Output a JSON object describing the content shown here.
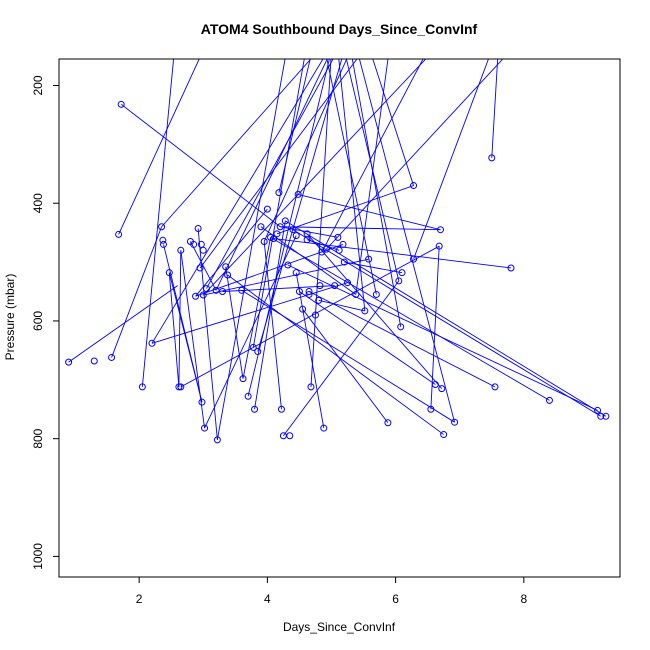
{
  "chart_data": {
    "type": "scatter",
    "title": "ATOM4 Southbound Days_Since_ConvInf",
    "xlabel": "Days_Since_ConvInf",
    "ylabel": "Pressure (mbar)",
    "xlim": [
      0.75,
      9.5
    ],
    "ylim": [
      1035,
      155
    ],
    "y_reversed": true,
    "x_ticks": [
      2,
      4,
      6,
      8
    ],
    "y_ticks": [
      200,
      400,
      600,
      800,
      1000
    ],
    "series_color": "#0000ff",
    "grid": false,
    "legend": "none",
    "series": [
      {
        "values": [
          [
            0.9,
            670
          ],
          [
            1.3,
            668
          ],
          [
            1.57,
            662
          ],
          [
            1.72,
            232
          ],
          [
            1.68,
            453
          ],
          [
            2.05,
            712
          ],
          [
            2.2,
            638
          ],
          [
            2.35,
            440
          ],
          [
            2.37,
            463
          ],
          [
            2.38,
            470
          ],
          [
            2.47,
            518
          ],
          [
            2.62,
            712
          ],
          [
            2.65,
            712
          ],
          [
            2.65,
            480
          ],
          [
            2.8,
            465
          ],
          [
            2.85,
            470
          ],
          [
            2.88,
            558
          ],
          [
            2.92,
            443
          ],
          [
            2.95,
            510
          ],
          [
            2.97,
            470
          ],
          [
            2.98,
            738
          ],
          [
            3.0,
            480
          ],
          [
            3.0,
            556
          ],
          [
            3.02,
            782
          ],
          [
            3.05,
            545
          ],
          [
            3.2,
            548
          ],
          [
            3.22,
            802
          ],
          [
            3.35,
            508
          ],
          [
            3.38,
            522
          ],
          [
            3.6,
            548
          ],
          [
            3.62,
            698
          ],
          [
            3.7,
            728
          ],
          [
            3.78,
            645
          ],
          [
            3.8,
            750
          ],
          [
            3.85,
            652
          ],
          [
            3.9,
            440
          ],
          [
            3.95,
            465
          ],
          [
            4.0,
            410
          ],
          [
            4.05,
            458
          ],
          [
            4.1,
            460
          ],
          [
            4.15,
            452
          ],
          [
            4.18,
            382
          ],
          [
            4.2,
            440
          ],
          [
            4.22,
            750
          ],
          [
            4.25,
            795
          ],
          [
            4.28,
            430
          ],
          [
            4.32,
            505
          ],
          [
            4.35,
            795
          ],
          [
            4.4,
            445
          ],
          [
            4.45,
            455
          ],
          [
            4.45,
            518
          ],
          [
            4.48,
            385
          ],
          [
            4.5,
            550
          ],
          [
            4.55,
            580
          ],
          [
            4.62,
            452
          ],
          [
            4.65,
            550
          ],
          [
            4.65,
            555
          ],
          [
            4.68,
            712
          ],
          [
            4.75,
            590
          ],
          [
            4.8,
            565
          ],
          [
            4.82,
            540
          ],
          [
            4.85,
            483
          ],
          [
            4.88,
            782
          ],
          [
            4.92,
            478
          ],
          [
            5.1,
            458
          ],
          [
            5.18,
            470
          ],
          [
            5.2,
            500
          ],
          [
            5.25,
            535
          ],
          [
            5.38,
            555
          ],
          [
            5.52,
            583
          ],
          [
            5.58,
            495
          ],
          [
            5.7,
            555
          ],
          [
            5.88,
            773
          ],
          [
            6.05,
            532
          ],
          [
            6.08,
            610
          ],
          [
            6.1,
            518
          ],
          [
            6.28,
            370
          ],
          [
            6.28,
            495
          ],
          [
            6.55,
            750
          ],
          [
            6.62,
            708
          ],
          [
            6.68,
            473
          ],
          [
            6.7,
            445
          ],
          [
            6.72,
            715
          ],
          [
            6.75,
            793
          ],
          [
            6.92,
            772
          ],
          [
            7.5,
            323
          ],
          [
            7.55,
            712
          ],
          [
            7.8,
            510
          ],
          [
            8.4,
            735
          ],
          [
            9.15,
            752
          ],
          [
            9.2,
            762
          ],
          [
            9.28,
            762
          ],
          [
            5.05,
            540
          ],
          [
            4.62,
            462
          ],
          [
            3.3,
            550
          ],
          [
            5.12,
            480
          ]
        ],
        "segments": [
          [
            [
              1.72,
              232
            ],
            [
              4.2,
              440
            ]
          ],
          [
            [
              1.68,
              453
            ],
            [
              3.0,
              140
            ]
          ],
          [
            [
              2.05,
              712
            ],
            [
              2.55,
              140
            ]
          ],
          [
            [
              0.9,
              670
            ],
            [
              2.6,
              540
            ]
          ],
          [
            [
              1.57,
              662
            ],
            [
              2.35,
              440
            ]
          ],
          [
            [
              2.35,
              440
            ],
            [
              4.8,
              140
            ]
          ],
          [
            [
              2.2,
              638
            ],
            [
              4.95,
              140
            ]
          ],
          [
            [
              2.38,
              470
            ],
            [
              2.98,
              738
            ]
          ],
          [
            [
              2.47,
              518
            ],
            [
              2.62,
              712
            ]
          ],
          [
            [
              2.62,
              712
            ],
            [
              2.65,
              480
            ]
          ],
          [
            [
              2.65,
              480
            ],
            [
              3.02,
              782
            ]
          ],
          [
            [
              2.8,
              465
            ],
            [
              3.2,
              548
            ]
          ],
          [
            [
              2.88,
              558
            ],
            [
              4.0,
              410
            ]
          ],
          [
            [
              2.92,
              443
            ],
            [
              3.22,
              802
            ]
          ],
          [
            [
              3.0,
              556
            ],
            [
              6.6,
              140
            ]
          ],
          [
            [
              3.05,
              545
            ],
            [
              5.1,
              140
            ]
          ],
          [
            [
              3.35,
              508
            ],
            [
              3.62,
              698
            ]
          ],
          [
            [
              3.38,
              522
            ],
            [
              6.75,
              793
            ]
          ],
          [
            [
              3.6,
              548
            ],
            [
              6.92,
              772
            ]
          ],
          [
            [
              3.62,
              698
            ],
            [
              4.05,
              458
            ]
          ],
          [
            [
              3.7,
              728
            ],
            [
              5.0,
              140
            ]
          ],
          [
            [
              3.78,
              645
            ],
            [
              4.6,
              140
            ]
          ],
          [
            [
              3.8,
              750
            ],
            [
              4.28,
              430
            ]
          ],
          [
            [
              3.85,
              652
            ],
            [
              5.2,
              140
            ]
          ],
          [
            [
              3.9,
              440
            ],
            [
              5.38,
              555
            ]
          ],
          [
            [
              3.95,
              465
            ],
            [
              5.3,
              140
            ]
          ],
          [
            [
              4.05,
              458
            ],
            [
              8.4,
              735
            ]
          ],
          [
            [
              4.1,
              460
            ],
            [
              7.8,
              510
            ]
          ],
          [
            [
              4.15,
              452
            ],
            [
              6.28,
              370
            ]
          ],
          [
            [
              4.18,
              382
            ],
            [
              4.7,
              140
            ]
          ],
          [
            [
              4.22,
              750
            ],
            [
              3.95,
              465
            ]
          ],
          [
            [
              4.25,
              795
            ],
            [
              6.05,
              532
            ]
          ],
          [
            [
              4.28,
              430
            ],
            [
              9.28,
              762
            ]
          ],
          [
            [
              4.32,
              505
            ],
            [
              9.15,
              752
            ]
          ],
          [
            [
              4.4,
              445
            ],
            [
              9.2,
              762
            ]
          ],
          [
            [
              4.45,
              518
            ],
            [
              4.88,
              782
            ]
          ],
          [
            [
              4.48,
              385
            ],
            [
              6.7,
              445
            ]
          ],
          [
            [
              4.5,
              550
            ],
            [
              6.62,
              708
            ]
          ],
          [
            [
              4.55,
              580
            ],
            [
              5.88,
              773
            ]
          ],
          [
            [
              4.62,
              452
            ],
            [
              6.72,
              715
            ]
          ],
          [
            [
              4.65,
              550
            ],
            [
              7.55,
              712
            ]
          ],
          [
            [
              4.68,
              712
            ],
            [
              4.75,
              590
            ]
          ],
          [
            [
              4.8,
              565
            ],
            [
              5.52,
              583
            ]
          ],
          [
            [
              4.85,
              483
            ],
            [
              6.5,
              140
            ]
          ],
          [
            [
              4.92,
              478
            ],
            [
              7.8,
              140
            ]
          ],
          [
            [
              5.1,
              458
            ],
            [
              4.2,
              440
            ]
          ],
          [
            [
              5.18,
              470
            ],
            [
              2.88,
              558
            ]
          ],
          [
            [
              5.2,
              500
            ],
            [
              6.1,
              518
            ]
          ],
          [
            [
              5.25,
              535
            ],
            [
              2.2,
              638
            ]
          ],
          [
            [
              5.38,
              555
            ],
            [
              5.9,
              140
            ]
          ],
          [
            [
              5.58,
              495
            ],
            [
              3.0,
              556
            ]
          ],
          [
            [
              5.7,
              555
            ],
            [
              4.9,
              140
            ]
          ],
          [
            [
              6.08,
              610
            ],
            [
              5.3,
              140
            ]
          ],
          [
            [
              6.28,
              495
            ],
            [
              7.5,
              140
            ]
          ],
          [
            [
              6.55,
              750
            ],
            [
              6.68,
              473
            ]
          ],
          [
            [
              6.68,
              473
            ],
            [
              2.65,
              712
            ]
          ],
          [
            [
              7.5,
              323
            ],
            [
              7.6,
              140
            ]
          ],
          [
            [
              6.28,
              370
            ],
            [
              5.6,
              140
            ]
          ],
          [
            [
              5.52,
              583
            ],
            [
              5.1,
              140
            ]
          ],
          [
            [
              4.2,
              440
            ],
            [
              6.7,
              445
            ]
          ],
          [
            [
              3.3,
              550
            ],
            [
              5.05,
              540
            ]
          ],
          [
            [
              4.62,
              462
            ],
            [
              5.12,
              480
            ]
          ],
          [
            [
              3.2,
              548
            ],
            [
              5.0,
              140
            ]
          ],
          [
            [
              2.98,
              738
            ],
            [
              2.47,
              518
            ]
          ],
          [
            [
              3.02,
              782
            ],
            [
              4.45,
              455
            ]
          ],
          [
            [
              6.05,
              532
            ],
            [
              5.2,
              140
            ]
          ],
          [
            [
              6.92,
              772
            ],
            [
              5.4,
              140
            ]
          ],
          [
            [
              4.75,
              590
            ],
            [
              5.0,
              140
            ]
          ],
          [
            [
              2.95,
              510
            ],
            [
              5.5,
              140
            ]
          ],
          [
            [
              3.22,
              802
            ],
            [
              4.3,
              140
            ]
          ]
        ]
      }
    ]
  }
}
